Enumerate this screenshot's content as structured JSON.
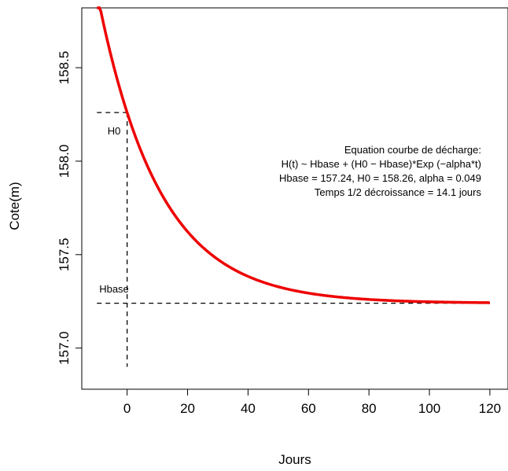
{
  "chart_data": {
    "type": "line",
    "xlabel": "Jours",
    "ylabel": "Cote(m)",
    "xlim": [
      -15,
      126
    ],
    "ylim": [
      156.78,
      158.82
    ],
    "x_ticks": [
      0,
      20,
      40,
      60,
      80,
      100,
      120
    ],
    "y_ticks": [
      157.0,
      157.5,
      158.0,
      158.5
    ],
    "x_tick_labels": [
      "0",
      "20",
      "40",
      "60",
      "80",
      "100",
      "120"
    ],
    "y_tick_labels": [
      "157.0",
      "157.5",
      "158.0",
      "158.5"
    ],
    "grid": false,
    "series": [
      {
        "color": "#ee0000",
        "model": "exponential_decay",
        "hbase": 157.24,
        "h0": 158.26,
        "alpha": 0.049,
        "x_range": [
          -10,
          120
        ]
      }
    ],
    "reference_lines": {
      "h0": {
        "label": "H0",
        "value": 158.26
      },
      "hbase": {
        "label": "Hbase",
        "value": 157.24
      },
      "t0": 0
    },
    "annotation_lines": [
      "Equation courbe de décharge:",
      "H(t) ~ Hbase + (H0 − Hbase)*Exp (−alpha*t)",
      "Hbase = 157.24, H0 = 158.26, alpha = 0.049",
      "Temps 1/2 décroissance = 14.1 jours"
    ]
  }
}
